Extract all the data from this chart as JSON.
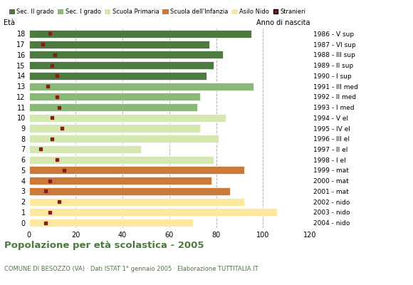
{
  "title": "Popolazione per età scolastica - 2005",
  "subtitle": "COMUNE DI BESOZZO (VA) · Dati ISTAT 1° gennaio 2005 · Elaborazione TUTTITALIA.IT",
  "label_eta": "Età",
  "label_anno": "Anno di nascita",
  "xlim": [
    0,
    120
  ],
  "xticks": [
    0,
    20,
    40,
    60,
    80,
    100,
    120
  ],
  "ages": [
    0,
    1,
    2,
    3,
    4,
    5,
    6,
    7,
    8,
    9,
    10,
    11,
    12,
    13,
    14,
    15,
    16,
    17,
    18
  ],
  "years": [
    "2004 - nido",
    "2003 - nido",
    "2002 - nido",
    "2001 - mat",
    "2000 - mat",
    "1999 - mat",
    "1998 - I el",
    "1997 - II el",
    "1996 - III el",
    "1995 - IV el",
    "1994 - V el",
    "1993 - I med",
    "1992 - II med",
    "1991 - III med",
    "1990 - I sup",
    "1989 - II sup",
    "1988 - III sup",
    "1987 - VI sup",
    "1986 - V sup"
  ],
  "bar_values": [
    70,
    106,
    92,
    86,
    78,
    92,
    79,
    48,
    81,
    73,
    84,
    72,
    73,
    96,
    76,
    79,
    83,
    77,
    95
  ],
  "stranieri_values": [
    7,
    9,
    13,
    7,
    9,
    15,
    12,
    5,
    10,
    14,
    10,
    13,
    12,
    8,
    12,
    10,
    11,
    6,
    9
  ],
  "bar_colors": [
    "#fde8a0",
    "#fde8a0",
    "#fde8a0",
    "#cc7a3a",
    "#cc7a3a",
    "#cc7a3a",
    "#d4e8b0",
    "#d4e8b0",
    "#d4e8b0",
    "#d4e8b0",
    "#d4e8b0",
    "#8ab878",
    "#8ab878",
    "#8ab878",
    "#4d7a3e",
    "#4d7a3e",
    "#4d7a3e",
    "#4d7a3e",
    "#4d7a3e"
  ],
  "legend_labels": [
    "Sec. II grado",
    "Sec. I grado",
    "Scuola Primaria",
    "Scuola dell'Infanzia",
    "Asilo Nido",
    "Stranieri"
  ],
  "legend_colors": [
    "#4d7a3e",
    "#8ab878",
    "#d4e8b0",
    "#cc7a3a",
    "#fde8a0",
    "#8b1a1a"
  ],
  "stranieri_color": "#8b1a1a",
  "title_color": "#4d7a3e",
  "grid_color": "#b0b0b0",
  "bg_color": "#ffffff"
}
